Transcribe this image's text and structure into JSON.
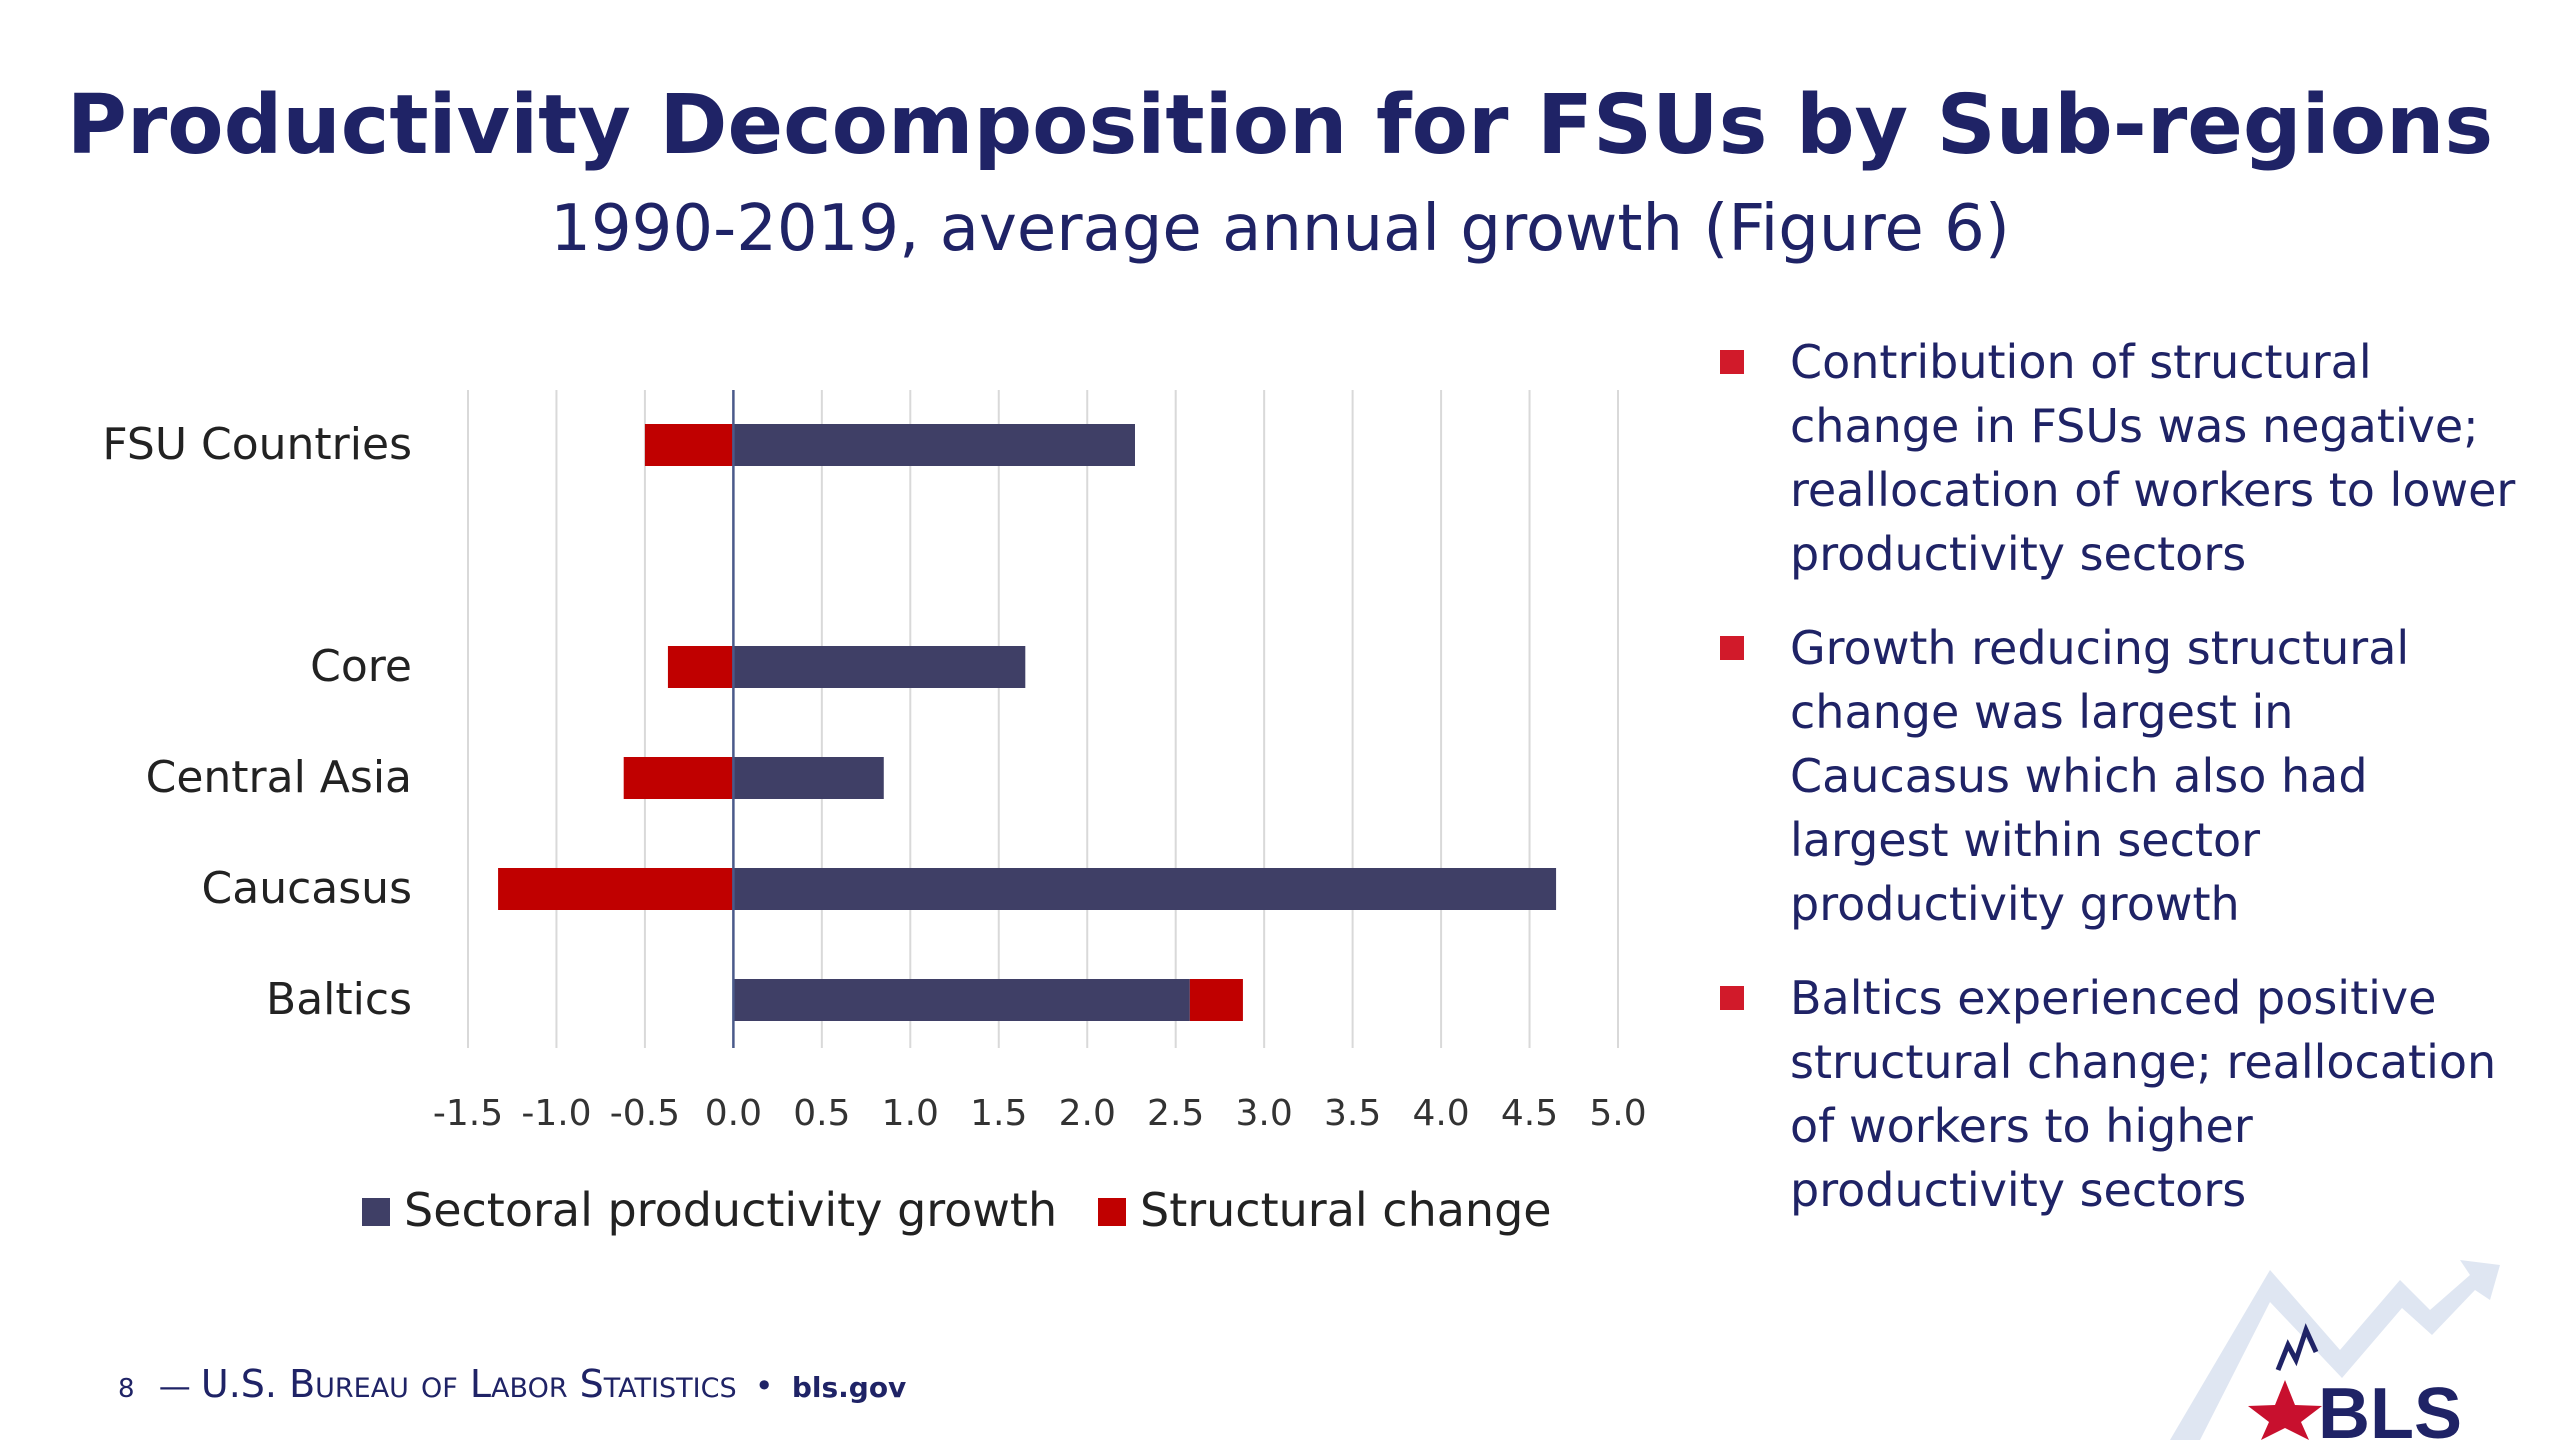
{
  "header": {
    "title": "Productivity Decomposition for FSUs by Sub-regions",
    "subtitle": "1990-2019, average annual growth (Figure 6)"
  },
  "chart_data": {
    "type": "bar",
    "orientation": "horizontal",
    "stacked": true,
    "categories": [
      "FSU Countries",
      "Core",
      "Central Asia",
      "Caucasus",
      "Baltics"
    ],
    "series": [
      {
        "name": "Sectoral productivity growth",
        "color": "#3f3f66",
        "values": [
          2.27,
          1.65,
          0.85,
          4.65,
          2.58
        ]
      },
      {
        "name": "Structural change",
        "color": "#c00000",
        "values": [
          -0.5,
          -0.37,
          -0.62,
          -1.33,
          0.3
        ]
      }
    ],
    "xlim": [
      -1.5,
      5.0
    ],
    "x_ticks": [
      "-1.5",
      "-1.0",
      "-0.5",
      "0.0",
      "0.5",
      "1.0",
      "1.5",
      "2.0",
      "2.5",
      "3.0",
      "3.5",
      "4.0",
      "4.5",
      "5.0"
    ],
    "grid": "vertical",
    "legend": "bottom"
  },
  "bullets": [
    {
      "text": "Contribution of structural change in FSUs was negative; reallocation of workers to lower productivity sectors"
    },
    {
      "text": "Growth reducing structural change was largest in Caucasus which also had largest within sector productivity growth"
    },
    {
      "text": "Baltics experienced positive structural change; reallocation of workers to higher productivity sectors"
    }
  ],
  "footer": {
    "page_number": "8",
    "dash": "—",
    "org": "U.S. Bureau of Labor Statistics",
    "bullet_dot": "•",
    "site": "bls.gov"
  },
  "logo": {
    "text": "BLS",
    "colors": {
      "blue": "#1f2366",
      "red": "#c8102e",
      "light": "#dfe6f2"
    }
  }
}
